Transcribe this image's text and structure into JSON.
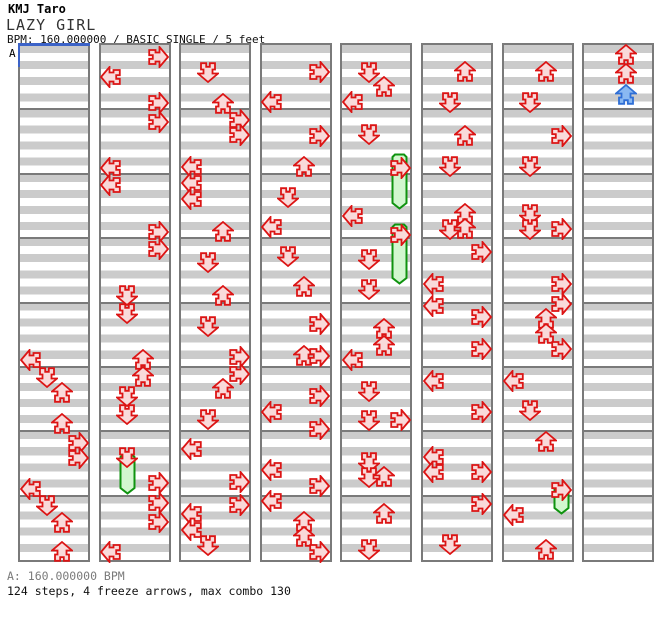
{
  "header": {
    "artist": "KMJ Taro",
    "title": "LAZY GIRL",
    "info": "BPM: 160.000000 / BASIC SINGLE / 5 feet"
  },
  "marker": {
    "label": "A"
  },
  "footer": {
    "bpm_line": "A: 160.000000 BPM",
    "stats_line": "124 steps, 4 freeze arrows, max combo 130"
  },
  "colors": {
    "stripe_gray": "#cbcbcb",
    "measure_border": "#7a7a7a",
    "arrow_red_stroke": "#dc1414",
    "arrow_red_fill": "#f9dada",
    "arrow_blue_stroke": "#2f6fd6",
    "arrow_blue_fill": "#8ab9f2",
    "freeze_stroke": "#0f930f",
    "freeze_fill": "#d2f7cf",
    "marker_blue": "#3c63c8"
  },
  "chart": {
    "columns": 8,
    "measures_per_column": 8,
    "arrows": [
      [
        0,
        "L",
        360
      ],
      [
        0,
        "D",
        377
      ],
      [
        0,
        "U",
        393
      ],
      [
        0,
        "U",
        424
      ],
      [
        0,
        "R",
        443
      ],
      [
        0,
        "R",
        458
      ],
      [
        0,
        "L",
        489
      ],
      [
        0,
        "D",
        505
      ],
      [
        0,
        "U",
        523
      ],
      [
        0,
        "U",
        552
      ],
      [
        1,
        "R",
        57
      ],
      [
        1,
        "L",
        77
      ],
      [
        1,
        "R",
        103
      ],
      [
        1,
        "R",
        122
      ],
      [
        1,
        "L",
        168
      ],
      [
        1,
        "L",
        185
      ],
      [
        1,
        "R",
        232
      ],
      [
        1,
        "R",
        249
      ],
      [
        1,
        "D",
        295
      ],
      [
        1,
        "D",
        313
      ],
      [
        1,
        "U",
        360
      ],
      [
        1,
        "U",
        377
      ],
      [
        1,
        "D",
        396
      ],
      [
        1,
        "D",
        414
      ],
      [
        1,
        "D",
        457
      ],
      [
        1,
        "R",
        483
      ],
      [
        1,
        "R",
        503
      ],
      [
        1,
        "R",
        522
      ],
      [
        1,
        "L",
        552
      ],
      [
        2,
        "D",
        72
      ],
      [
        2,
        "U",
        104
      ],
      [
        2,
        "R",
        120
      ],
      [
        2,
        "R",
        135
      ],
      [
        2,
        "L",
        167
      ],
      [
        2,
        "L",
        183
      ],
      [
        2,
        "L",
        199
      ],
      [
        2,
        "U",
        232
      ],
      [
        2,
        "D",
        262
      ],
      [
        2,
        "U",
        296
      ],
      [
        2,
        "D",
        326
      ],
      [
        2,
        "R",
        357
      ],
      [
        2,
        "R",
        374
      ],
      [
        2,
        "U",
        389
      ],
      [
        2,
        "D",
        419
      ],
      [
        2,
        "L",
        449
      ],
      [
        2,
        "R",
        482
      ],
      [
        2,
        "R",
        505
      ],
      [
        2,
        "L",
        514
      ],
      [
        2,
        "L",
        530
      ],
      [
        2,
        "D",
        545
      ],
      [
        3,
        "R",
        72
      ],
      [
        3,
        "L",
        102
      ],
      [
        3,
        "R",
        136
      ],
      [
        3,
        "U",
        167
      ],
      [
        3,
        "D",
        197
      ],
      [
        3,
        "L",
        227
      ],
      [
        3,
        "D",
        256
      ],
      [
        3,
        "U",
        287
      ],
      [
        3,
        "R",
        324
      ],
      [
        3,
        "U",
        356
      ],
      [
        3,
        "R",
        356
      ],
      [
        3,
        "R",
        396
      ],
      [
        3,
        "L",
        412
      ],
      [
        3,
        "R",
        429
      ],
      [
        3,
        "L",
        470
      ],
      [
        3,
        "R",
        486
      ],
      [
        3,
        "L",
        501
      ],
      [
        3,
        "U",
        522
      ],
      [
        3,
        "U",
        537
      ],
      [
        3,
        "R",
        552
      ],
      [
        4,
        "D",
        72
      ],
      [
        4,
        "U",
        87
      ],
      [
        4,
        "L",
        102
      ],
      [
        4,
        "D",
        134
      ],
      [
        4,
        "R",
        168
      ],
      [
        4,
        "L",
        216
      ],
      [
        4,
        "R",
        235
      ],
      [
        4,
        "D",
        259
      ],
      [
        4,
        "D",
        289
      ],
      [
        4,
        "U",
        329
      ],
      [
        4,
        "U",
        346
      ],
      [
        4,
        "L",
        360
      ],
      [
        4,
        "D",
        391
      ],
      [
        4,
        "D",
        420
      ],
      [
        4,
        "R",
        420
      ],
      [
        4,
        "D",
        462
      ],
      [
        4,
        "D",
        477
      ],
      [
        4,
        "U",
        477
      ],
      [
        4,
        "U",
        514
      ],
      [
        4,
        "D",
        549
      ],
      [
        5,
        "U",
        72
      ],
      [
        5,
        "D",
        102
      ],
      [
        5,
        "U",
        136
      ],
      [
        5,
        "D",
        166
      ],
      [
        5,
        "U",
        214
      ],
      [
        5,
        "D",
        229
      ],
      [
        5,
        "U",
        229
      ],
      [
        5,
        "R",
        252
      ],
      [
        5,
        "L",
        284
      ],
      [
        5,
        "L",
        306
      ],
      [
        5,
        "R",
        317
      ],
      [
        5,
        "R",
        349
      ],
      [
        5,
        "L",
        381
      ],
      [
        5,
        "R",
        412
      ],
      [
        5,
        "L",
        457
      ],
      [
        5,
        "L",
        472
      ],
      [
        5,
        "R",
        472
      ],
      [
        5,
        "R",
        504
      ],
      [
        5,
        "D",
        544
      ],
      [
        6,
        "U",
        72
      ],
      [
        6,
        "D",
        102
      ],
      [
        6,
        "R",
        136
      ],
      [
        6,
        "D",
        166
      ],
      [
        6,
        "D",
        214
      ],
      [
        6,
        "D",
        229
      ],
      [
        6,
        "R",
        229
      ],
      [
        6,
        "R",
        284
      ],
      [
        6,
        "R",
        304
      ],
      [
        6,
        "U",
        319
      ],
      [
        6,
        "U",
        334
      ],
      [
        6,
        "R",
        349
      ],
      [
        6,
        "L",
        381
      ],
      [
        6,
        "D",
        410
      ],
      [
        6,
        "U",
        442
      ],
      [
        6,
        "R",
        490
      ],
      [
        6,
        "L",
        515
      ],
      [
        6,
        "U",
        550
      ],
      [
        7,
        "U",
        55
      ],
      [
        7,
        "U",
        74
      ],
      [
        7,
        "U",
        95,
        "blue"
      ]
    ],
    "freezes": [
      [
        1,
        "D",
        455,
        493
      ],
      [
        4,
        "R",
        155,
        208
      ],
      [
        4,
        "R",
        225,
        283
      ],
      [
        6,
        "R",
        487,
        513
      ]
    ]
  }
}
